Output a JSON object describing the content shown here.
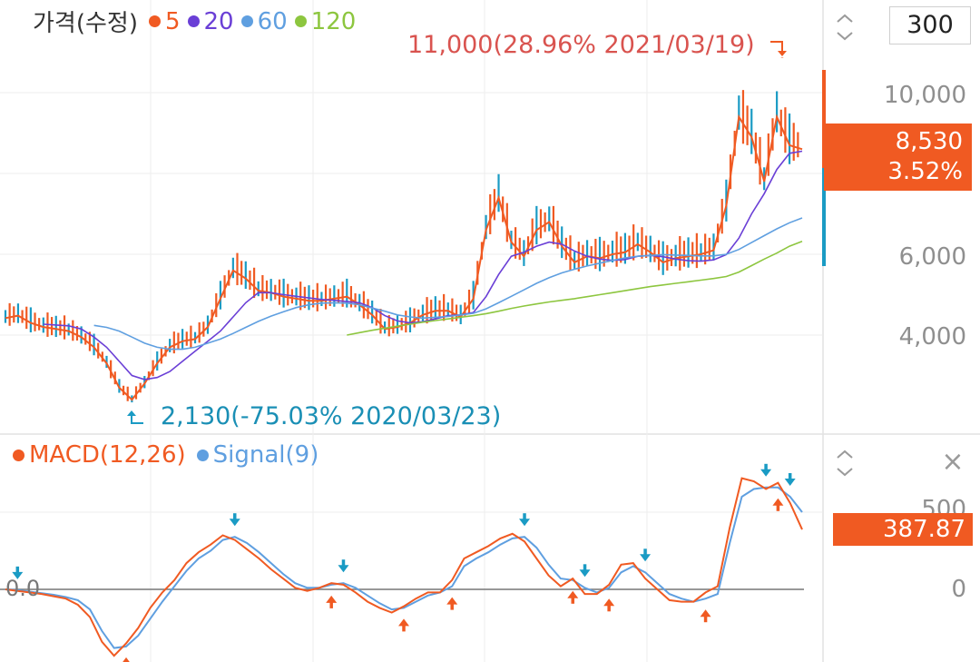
{
  "price_panel": {
    "legend_title": "가격(수정)",
    "ma": [
      {
        "label": "5",
        "color": "#f05a22"
      },
      {
        "label": "20",
        "color": "#6a3fd6"
      },
      {
        "label": "60",
        "color": "#5f9fe0"
      },
      {
        "label": "120",
        "color": "#8dc63f"
      }
    ],
    "period_value": "300",
    "y_ticks": [
      "10,000",
      "6,000",
      "4,000"
    ],
    "current_price": "8,530",
    "current_change": "3.52%",
    "high_annotation": "11,000(28.96% 2021/03/19)",
    "low_annotation": "2,130(-75.03% 2020/03/23)"
  },
  "macd_panel": {
    "legend_macd": "MACD(12,26)",
    "legend_signal": "Signal(9)",
    "macd_color": "#f05a22",
    "signal_color": "#5f9fe0",
    "current_value": "387.87",
    "y_ticks": [
      "500",
      "0"
    ],
    "zero_label": "0.0"
  },
  "colors": {
    "up": "#f05a22",
    "down": "#1a9bc4"
  },
  "chart_data": [
    {
      "type": "line",
      "title": "가격(수정)",
      "y_ticks": [
        4000,
        6000,
        10000
      ],
      "high": {
        "value": 11000,
        "change_pct": 28.96,
        "date": "2021/03/19"
      },
      "low": {
        "value": 2130,
        "change_pct": -75.03,
        "date": "2020/03/23"
      },
      "last": 8530,
      "last_change_pct": 3.52,
      "series": [
        {
          "name": "5",
          "values": [
            4420,
            4480,
            4300,
            4200,
            4150,
            4100,
            3950,
            3700,
            3300,
            2700,
            2400,
            2800,
            3300,
            3700,
            3850,
            3900,
            4200,
            4900,
            5600,
            5400,
            5100,
            5050,
            4950,
            4900,
            4850,
            4850,
            4900,
            4950,
            4750,
            4500,
            4150,
            4200,
            4300,
            4500,
            4600,
            4600,
            4450,
            4900,
            6600,
            7400,
            6300,
            5950,
            6600,
            6800,
            6200,
            5800,
            5950,
            5900,
            6000,
            6050,
            6250,
            6050,
            5800,
            5900,
            5950,
            6000,
            6100,
            7200,
            9400,
            8900,
            7800,
            9400,
            8700,
            8600
          ]
        },
        {
          "name": "20",
          "values": [
            null,
            null,
            null,
            4270,
            4250,
            4230,
            4150,
            3950,
            3700,
            3350,
            3000,
            2900,
            2950,
            3100,
            3350,
            3600,
            3850,
            4100,
            4450,
            4800,
            5050,
            5050,
            5000,
            4960,
            4920,
            4880,
            4860,
            4830,
            4800,
            4680,
            4480,
            4350,
            4300,
            4330,
            4400,
            4480,
            4500,
            4560,
            4950,
            5500,
            5950,
            6050,
            6200,
            6300,
            6250,
            6080,
            5950,
            5880,
            5850,
            5870,
            5950,
            5970,
            5940,
            5880,
            5840,
            5830,
            5860,
            5990,
            6400,
            7000,
            7500,
            8100,
            8500,
            8550
          ]
        },
        {
          "name": "60",
          "values": [
            null,
            null,
            null,
            null,
            null,
            null,
            null,
            4240,
            4190,
            4100,
            3950,
            3800,
            3700,
            3650,
            3650,
            3700,
            3800,
            3900,
            4040,
            4190,
            4340,
            4470,
            4580,
            4680,
            4750,
            4790,
            4800,
            4790,
            4750,
            4670,
            4590,
            4500,
            4450,
            4420,
            4440,
            4460,
            4500,
            4540,
            4650,
            4800,
            4960,
            5120,
            5280,
            5420,
            5540,
            5630,
            5710,
            5780,
            5850,
            5910,
            5950,
            5970,
            5990,
            5980,
            5970,
            5960,
            5960,
            6000,
            6120,
            6290,
            6460,
            6630,
            6780,
            6900
          ]
        },
        {
          "name": "120",
          "values": [
            null,
            null,
            null,
            null,
            null,
            null,
            null,
            null,
            null,
            null,
            null,
            null,
            null,
            null,
            null,
            null,
            null,
            null,
            null,
            null,
            null,
            null,
            null,
            null,
            null,
            null,
            null,
            4000,
            4060,
            4120,
            4170,
            4220,
            4270,
            4320,
            4360,
            4400,
            4440,
            4480,
            4530,
            4590,
            4660,
            4720,
            4770,
            4820,
            4860,
            4900,
            4950,
            5000,
            5050,
            5100,
            5150,
            5200,
            5240,
            5280,
            5320,
            5360,
            5400,
            5450,
            5560,
            5720,
            5880,
            6030,
            6200,
            6320
          ]
        }
      ]
    },
    {
      "type": "line",
      "title": "MACD(12,26)",
      "y_ticks": [
        0,
        500
      ],
      "last": 387.87,
      "series": [
        {
          "name": "MACD(12,26)",
          "values": [
            0,
            -10,
            -20,
            -30,
            -45,
            -60,
            -100,
            -180,
            -340,
            -430,
            -350,
            -250,
            -120,
            -20,
            60,
            170,
            240,
            290,
            350,
            320,
            260,
            200,
            130,
            70,
            10,
            -10,
            10,
            40,
            30,
            -20,
            -80,
            -120,
            -150,
            -110,
            -60,
            -20,
            -20,
            60,
            200,
            240,
            280,
            330,
            360,
            310,
            200,
            90,
            20,
            70,
            -30,
            -30,
            30,
            160,
            170,
            70,
            0,
            -70,
            -80,
            -80,
            -20,
            20,
            400,
            720,
            700,
            650,
            690,
            560,
            387.87
          ]
        },
        {
          "name": "Signal(9)",
          "values": [
            0,
            -5,
            -15,
            -25,
            -35,
            -50,
            -70,
            -130,
            -270,
            -380,
            -370,
            -300,
            -190,
            -80,
            20,
            120,
            200,
            250,
            320,
            340,
            300,
            240,
            170,
            100,
            40,
            10,
            10,
            30,
            40,
            10,
            -40,
            -90,
            -130,
            -120,
            -80,
            -40,
            -20,
            20,
            150,
            200,
            240,
            290,
            330,
            340,
            270,
            160,
            70,
            60,
            10,
            -20,
            10,
            110,
            150,
            110,
            40,
            -30,
            -60,
            -80,
            -60,
            -30,
            300,
            600,
            650,
            660,
            660,
            600,
            500
          ]
        }
      ]
    }
  ]
}
